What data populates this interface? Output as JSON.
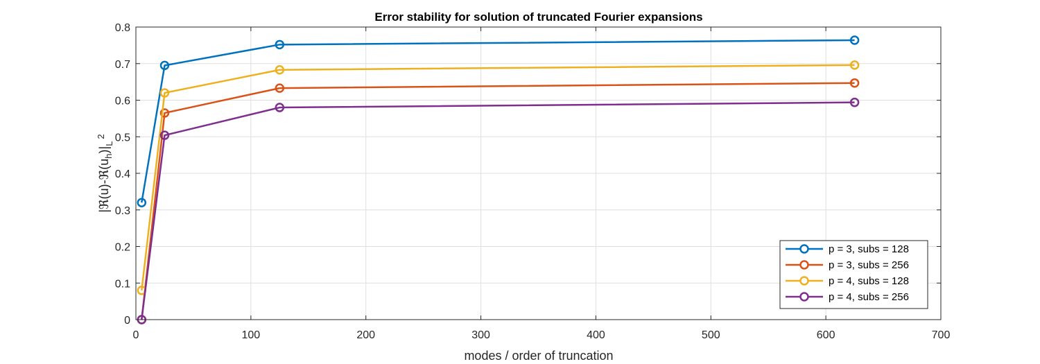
{
  "chart_data": {
    "type": "line",
    "title": "Error stability for solution of truncated Fourier expansions",
    "xlabel": "modes / order of truncation",
    "ylabel": {
      "main": "|ℜ(u)-ℜ(u",
      "sub_h": "h",
      "mid": ")|",
      "sub_L": "L",
      "sup": "2"
    },
    "xlim": [
      0,
      700
    ],
    "ylim": [
      0,
      0.8
    ],
    "xticks": [
      "0",
      "100",
      "200",
      "300",
      "400",
      "500",
      "600",
      "700"
    ],
    "yticks": [
      "0",
      "0.1",
      "0.2",
      "0.3",
      "0.4",
      "0.5",
      "0.6",
      "0.7",
      "0.8"
    ],
    "grid": true,
    "legend_position": "bottom-right",
    "x": [
      5,
      25,
      125,
      625
    ],
    "series": [
      {
        "name": "p = 3, subs = 128",
        "color": "#0072BD",
        "values": [
          0.32,
          0.695,
          0.752,
          0.764
        ]
      },
      {
        "name": "p = 3, subs = 256",
        "color": "#D95319",
        "values": [
          0.0,
          0.565,
          0.633,
          0.647
        ]
      },
      {
        "name": "p = 4, subs = 128",
        "color": "#EDB120",
        "values": [
          0.08,
          0.62,
          0.683,
          0.696
        ]
      },
      {
        "name": "p = 4, subs = 256",
        "color": "#7E2F8E",
        "values": [
          0.0,
          0.504,
          0.58,
          0.594
        ]
      }
    ]
  }
}
